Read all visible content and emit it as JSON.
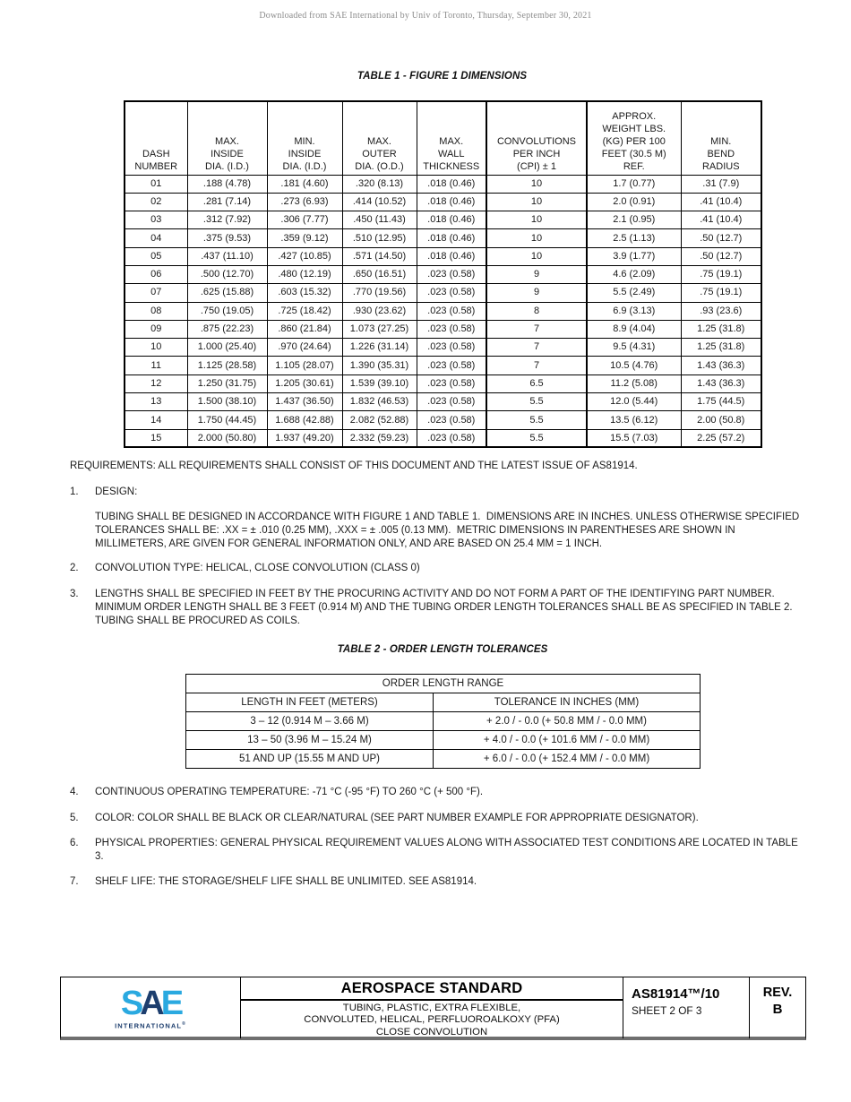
{
  "page_note": "Downloaded from SAE International by Univ of Toronto, Thursday, September 30, 2021",
  "table1": {
    "title": "TABLE 1 - FIGURE 1 DIMENSIONS",
    "headers": [
      "DASH\nNUMBER",
      "MAX.\nINSIDE\nDIA. (I.D.)",
      "MIN.\nINSIDE\nDIA. (I.D.)",
      "MAX.\nOUTER\nDIA. (O.D.)",
      "MAX.\nWALL\nTHICKNESS",
      "CONVOLUTIONS\nPER INCH\n(CPI) ± 1",
      "APPROX.\nWEIGHT LBS.\n(KG) PER 100\nFEET (30.5 M)\nREF.",
      "MIN.\nBEND\nRADIUS"
    ],
    "rows": [
      [
        "01",
        ".188 (4.78)",
        ".181 (4.60)",
        ".320 (8.13)",
        ".018 (0.46)",
        "10",
        "1.7 (0.77)",
        ".31 (7.9)"
      ],
      [
        "02",
        ".281 (7.14)",
        ".273 (6.93)",
        ".414 (10.52)",
        ".018 (0.46)",
        "10",
        "2.0 (0.91)",
        ".41 (10.4)"
      ],
      [
        "03",
        ".312 (7.92)",
        ".306 (7.77)",
        ".450 (11.43)",
        ".018 (0.46)",
        "10",
        "2.1 (0.95)",
        ".41 (10.4)"
      ],
      [
        "04",
        ".375 (9.53)",
        ".359 (9.12)",
        ".510 (12.95)",
        ".018 (0.46)",
        "10",
        "2.5 (1.13)",
        ".50 (12.7)"
      ],
      [
        "05",
        ".437 (11.10)",
        ".427 (10.85)",
        ".571 (14.50)",
        ".018 (0.46)",
        "10",
        "3.9 (1.77)",
        ".50 (12.7)"
      ],
      [
        "06",
        ".500 (12.70)",
        ".480 (12.19)",
        ".650 (16.51)",
        ".023 (0.58)",
        "9",
        "4.6 (2.09)",
        ".75 (19.1)"
      ],
      [
        "07",
        ".625 (15.88)",
        ".603 (15.32)",
        ".770 (19.56)",
        ".023 (0.58)",
        "9",
        "5.5 (2.49)",
        ".75 (19.1)"
      ],
      [
        "08",
        ".750 (19.05)",
        ".725 (18.42)",
        ".930 (23.62)",
        ".023 (0.58)",
        "8",
        "6.9 (3.13)",
        ".93 (23.6)"
      ],
      [
        "09",
        ".875 (22.23)",
        ".860 (21.84)",
        "1.073 (27.25)",
        ".023 (0.58)",
        "7",
        "8.9 (4.04)",
        "1.25 (31.8)"
      ],
      [
        "10",
        "1.000 (25.40)",
        ".970 (24.64)",
        "1.226 (31.14)",
        ".023 (0.58)",
        "7",
        "9.5 (4.31)",
        "1.25 (31.8)"
      ],
      [
        "11",
        "1.125 (28.58)",
        "1.105 (28.07)",
        "1.390 (35.31)",
        ".023 (0.58)",
        "7",
        "10.5 (4.76)",
        "1.43 (36.3)"
      ],
      [
        "12",
        "1.250 (31.75)",
        "1.205 (30.61)",
        "1.539 (39.10)",
        ".023 (0.58)",
        "6.5",
        "11.2 (5.08)",
        "1.43 (36.3)"
      ],
      [
        "13",
        "1.500 (38.10)",
        "1.437 (36.50)",
        "1.832 (46.53)",
        ".023 (0.58)",
        "5.5",
        "12.0 (5.44)",
        "1.75 (44.5)"
      ],
      [
        "14",
        "1.750 (44.45)",
        "1.688 (42.88)",
        "2.082 (52.88)",
        ".023 (0.58)",
        "5.5",
        "13.5 (6.12)",
        "2.00 (50.8)"
      ],
      [
        "15",
        "2.000 (50.80)",
        "1.937 (49.20)",
        "2.332 (59.23)",
        ".023 (0.58)",
        "5.5",
        "15.5 (7.03)",
        "2.25 (57.2)"
      ]
    ]
  },
  "sections": {
    "intro": "REQUIREMENTS: ALL REQUIREMENTS SHALL CONSIST OF THIS DOCUMENT AND THE LATEST ISSUE OF AS81914.",
    "items": [
      {
        "num": "1.",
        "text": "DESIGN:",
        "body": "TUBING SHALL BE DESIGNED IN ACCORDANCE WITH FIGURE 1 AND TABLE 1.  DIMENSIONS ARE IN INCHES. UNLESS OTHERWISE SPECIFIED TOLERANCES SHALL BE: .XX = ± .010 (0.25 MM), .XXX = ± .005 (0.13 MM).  METRIC DIMENSIONS IN PARENTHESES ARE SHOWN IN MILLIMETERS, ARE GIVEN FOR GENERAL INFORMATION ONLY, AND ARE BASED ON 25.4 MM = 1 INCH."
      },
      {
        "num": "2.",
        "text": "CONVOLUTION TYPE: HELICAL, CLOSE CONVOLUTION (CLASS 0)"
      },
      {
        "num": "3.",
        "text": "LENGTHS SHALL BE SPECIFIED IN FEET BY THE PROCURING ACTIVITY AND DO NOT FORM A PART OF THE IDENTIFYING PART NUMBER. MINIMUM ORDER LENGTH SHALL BE 3 FEET (0.914 M) AND THE TUBING ORDER LENGTH TOLERANCES SHALL BE AS SPECIFIED IN TABLE 2. TUBING SHALL BE PROCURED AS COILS."
      },
      {
        "num": "4.",
        "text": "CONTINUOUS OPERATING TEMPERATURE: -71 °C (-95 °F) TO 260 °C (+ 500 °F)."
      },
      {
        "num": "5.",
        "text": "COLOR: COLOR SHALL BE BLACK OR CLEAR/NATURAL (SEE PART NUMBER EXAMPLE FOR APPROPRIATE DESIGNATOR)."
      },
      {
        "num": "6.",
        "text": "PHYSICAL PROPERTIES: GENERAL PHYSICAL REQUIREMENT VALUES ALONG WITH ASSOCIATED TEST CONDITIONS ARE LOCATED IN TABLE 3."
      },
      {
        "num": "7.",
        "text": "SHELF LIFE: THE STORAGE/SHELF LIFE SHALL BE UNLIMITED. SEE AS81914."
      }
    ]
  },
  "table2": {
    "title": "TABLE 2 - ORDER LENGTH TOLERANCES",
    "span_header": "ORDER LENGTH RANGE",
    "col_headers": [
      "LENGTH IN FEET (METERS)",
      "TOLERANCE IN INCHES (MM)"
    ],
    "rows": [
      [
        "3 – 12 (0.914 M – 3.66 M)",
        "+ 2.0 / - 0.0 (+ 50.8 MM / - 0.0 MM)"
      ],
      [
        "13 – 50 (3.96 M – 15.24 M)",
        "+ 4.0 / - 0.0 (+ 101.6 MM / - 0.0 MM)"
      ],
      [
        "51 AND UP (15.55 M AND UP)",
        "+ 6.0 / - 0.0 (+ 152.4 MM / - 0.0 MM)"
      ]
    ]
  },
  "footer": {
    "logo": {
      "s": "S",
      "a": "A",
      "e": "E",
      "international": "INTERNATIONAL",
      "registered": "®",
      "light_blue": "#2aa9e0",
      "navy": "#1d3e6e"
    },
    "title": "AEROSPACE STANDARD",
    "subtitle": "TUBING, PLASTIC, EXTRA FLEXIBLE,\nCONVOLUTED, HELICAL, PERFLUOROALKOXY (PFA)\nCLOSE CONVOLUTION",
    "doc_number": "AS81914™/10",
    "sheet": "SHEET 2 OF 3",
    "rev_label": "REV.",
    "rev_value": "B"
  }
}
